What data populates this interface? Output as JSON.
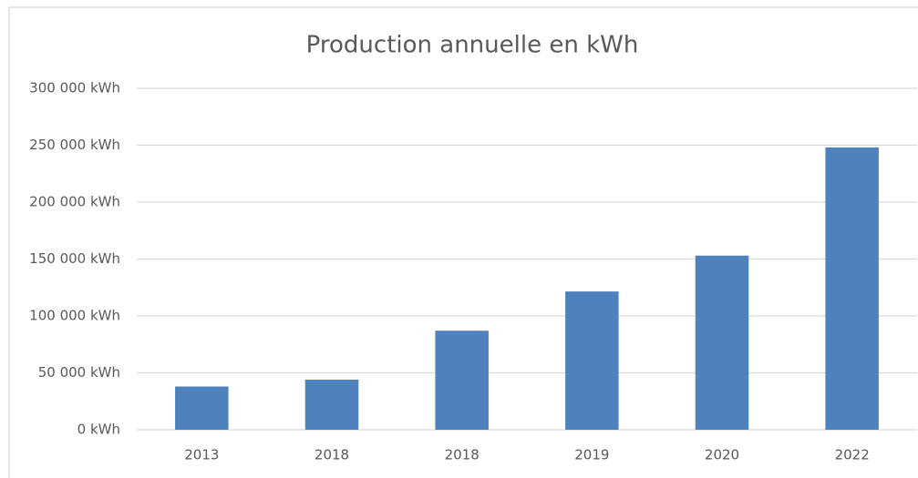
{
  "chart_data": {
    "type": "bar",
    "title": "Production annuelle en kWh",
    "categories": [
      "2013",
      "2018",
      "2018",
      "2019",
      "2020",
      "2022"
    ],
    "values": [
      38000,
      44000,
      87000,
      121500,
      153000,
      248000
    ],
    "color": "#4f81bd",
    "ylim": [
      0,
      300000
    ],
    "yticks": [
      {
        "value": 0,
        "label": "0 kWh"
      },
      {
        "value": 50000,
        "label": "50 000 kWh"
      },
      {
        "value": 100000,
        "label": "100 000 kWh"
      },
      {
        "value": 150000,
        "label": "150 000 kWh"
      },
      {
        "value": 200000,
        "label": "200 000 kWh"
      },
      {
        "value": 250000,
        "label": "250 000 kWh"
      },
      {
        "value": 300000,
        "label": "300 000 kWh"
      }
    ],
    "grid": true
  }
}
